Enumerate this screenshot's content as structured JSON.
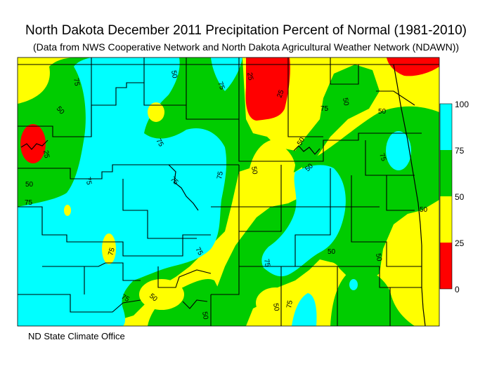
{
  "title": "North Dakota December 2011 Precipitation Percent of Normal (1981-2010)",
  "subtitle": "(Data from NWS Cooperative Network and North Dakota Agricultural Weather Network (NDAWN))",
  "credit": "ND State Climate Office",
  "legend": {
    "classes": [
      {
        "range": "0-25",
        "color": "#ff0000"
      },
      {
        "range": "25-50",
        "color": "#ffff00"
      },
      {
        "range": "50-75",
        "color": "#00cc00"
      },
      {
        "range": "75-100",
        "color": "#00ffff"
      }
    ],
    "ticks": [
      "100",
      "75",
      "50",
      "25",
      "0"
    ]
  },
  "contour_labels": [
    "75",
    "50",
    "25",
    "75",
    "50",
    "25",
    "25",
    "50",
    "75",
    "50",
    "50",
    "75",
    "50",
    "75",
    "75",
    "50",
    "75",
    "50",
    "50",
    "75",
    "75",
    "75",
    "50",
    "75",
    "50",
    "75",
    "50",
    "50",
    "75",
    "50",
    "75"
  ]
}
